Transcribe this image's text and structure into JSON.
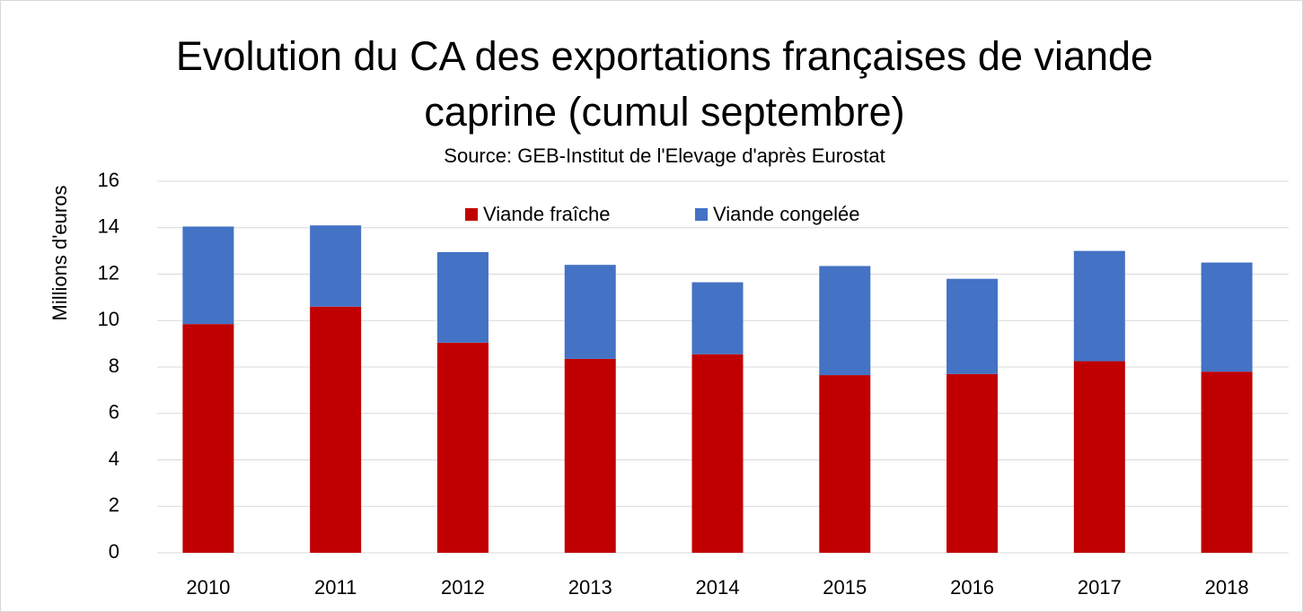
{
  "chart_data": {
    "type": "stacked_bar",
    "title": [
      "Evolution du CA des exportations françaises de viande",
      "caprine (cumul septembre)"
    ],
    "subtitle": "Source: GEB-Institut de l'Elevage d'après Eurostat",
    "y_label": "Millions d'euros",
    "categories": [
      "2010",
      "2011",
      "2012",
      "2013",
      "2014",
      "2015",
      "2016",
      "2017",
      "2018"
    ],
    "series": [
      {
        "name": "Viande fraîche",
        "color": "#c00000",
        "values": [
          9.85,
          10.6,
          9.05,
          8.35,
          8.55,
          7.65,
          7.7,
          8.25,
          7.8
        ]
      },
      {
        "name": "Viande congelée",
        "color": "#4472c4",
        "values": [
          4.2,
          3.5,
          3.9,
          4.05,
          3.1,
          4.7,
          4.1,
          4.75,
          4.7
        ]
      }
    ],
    "ylim": [
      0,
      16
    ],
    "yticks": [
      0,
      2,
      4,
      6,
      8,
      10,
      12,
      14,
      16
    ],
    "grid": true,
    "legend": "top"
  }
}
